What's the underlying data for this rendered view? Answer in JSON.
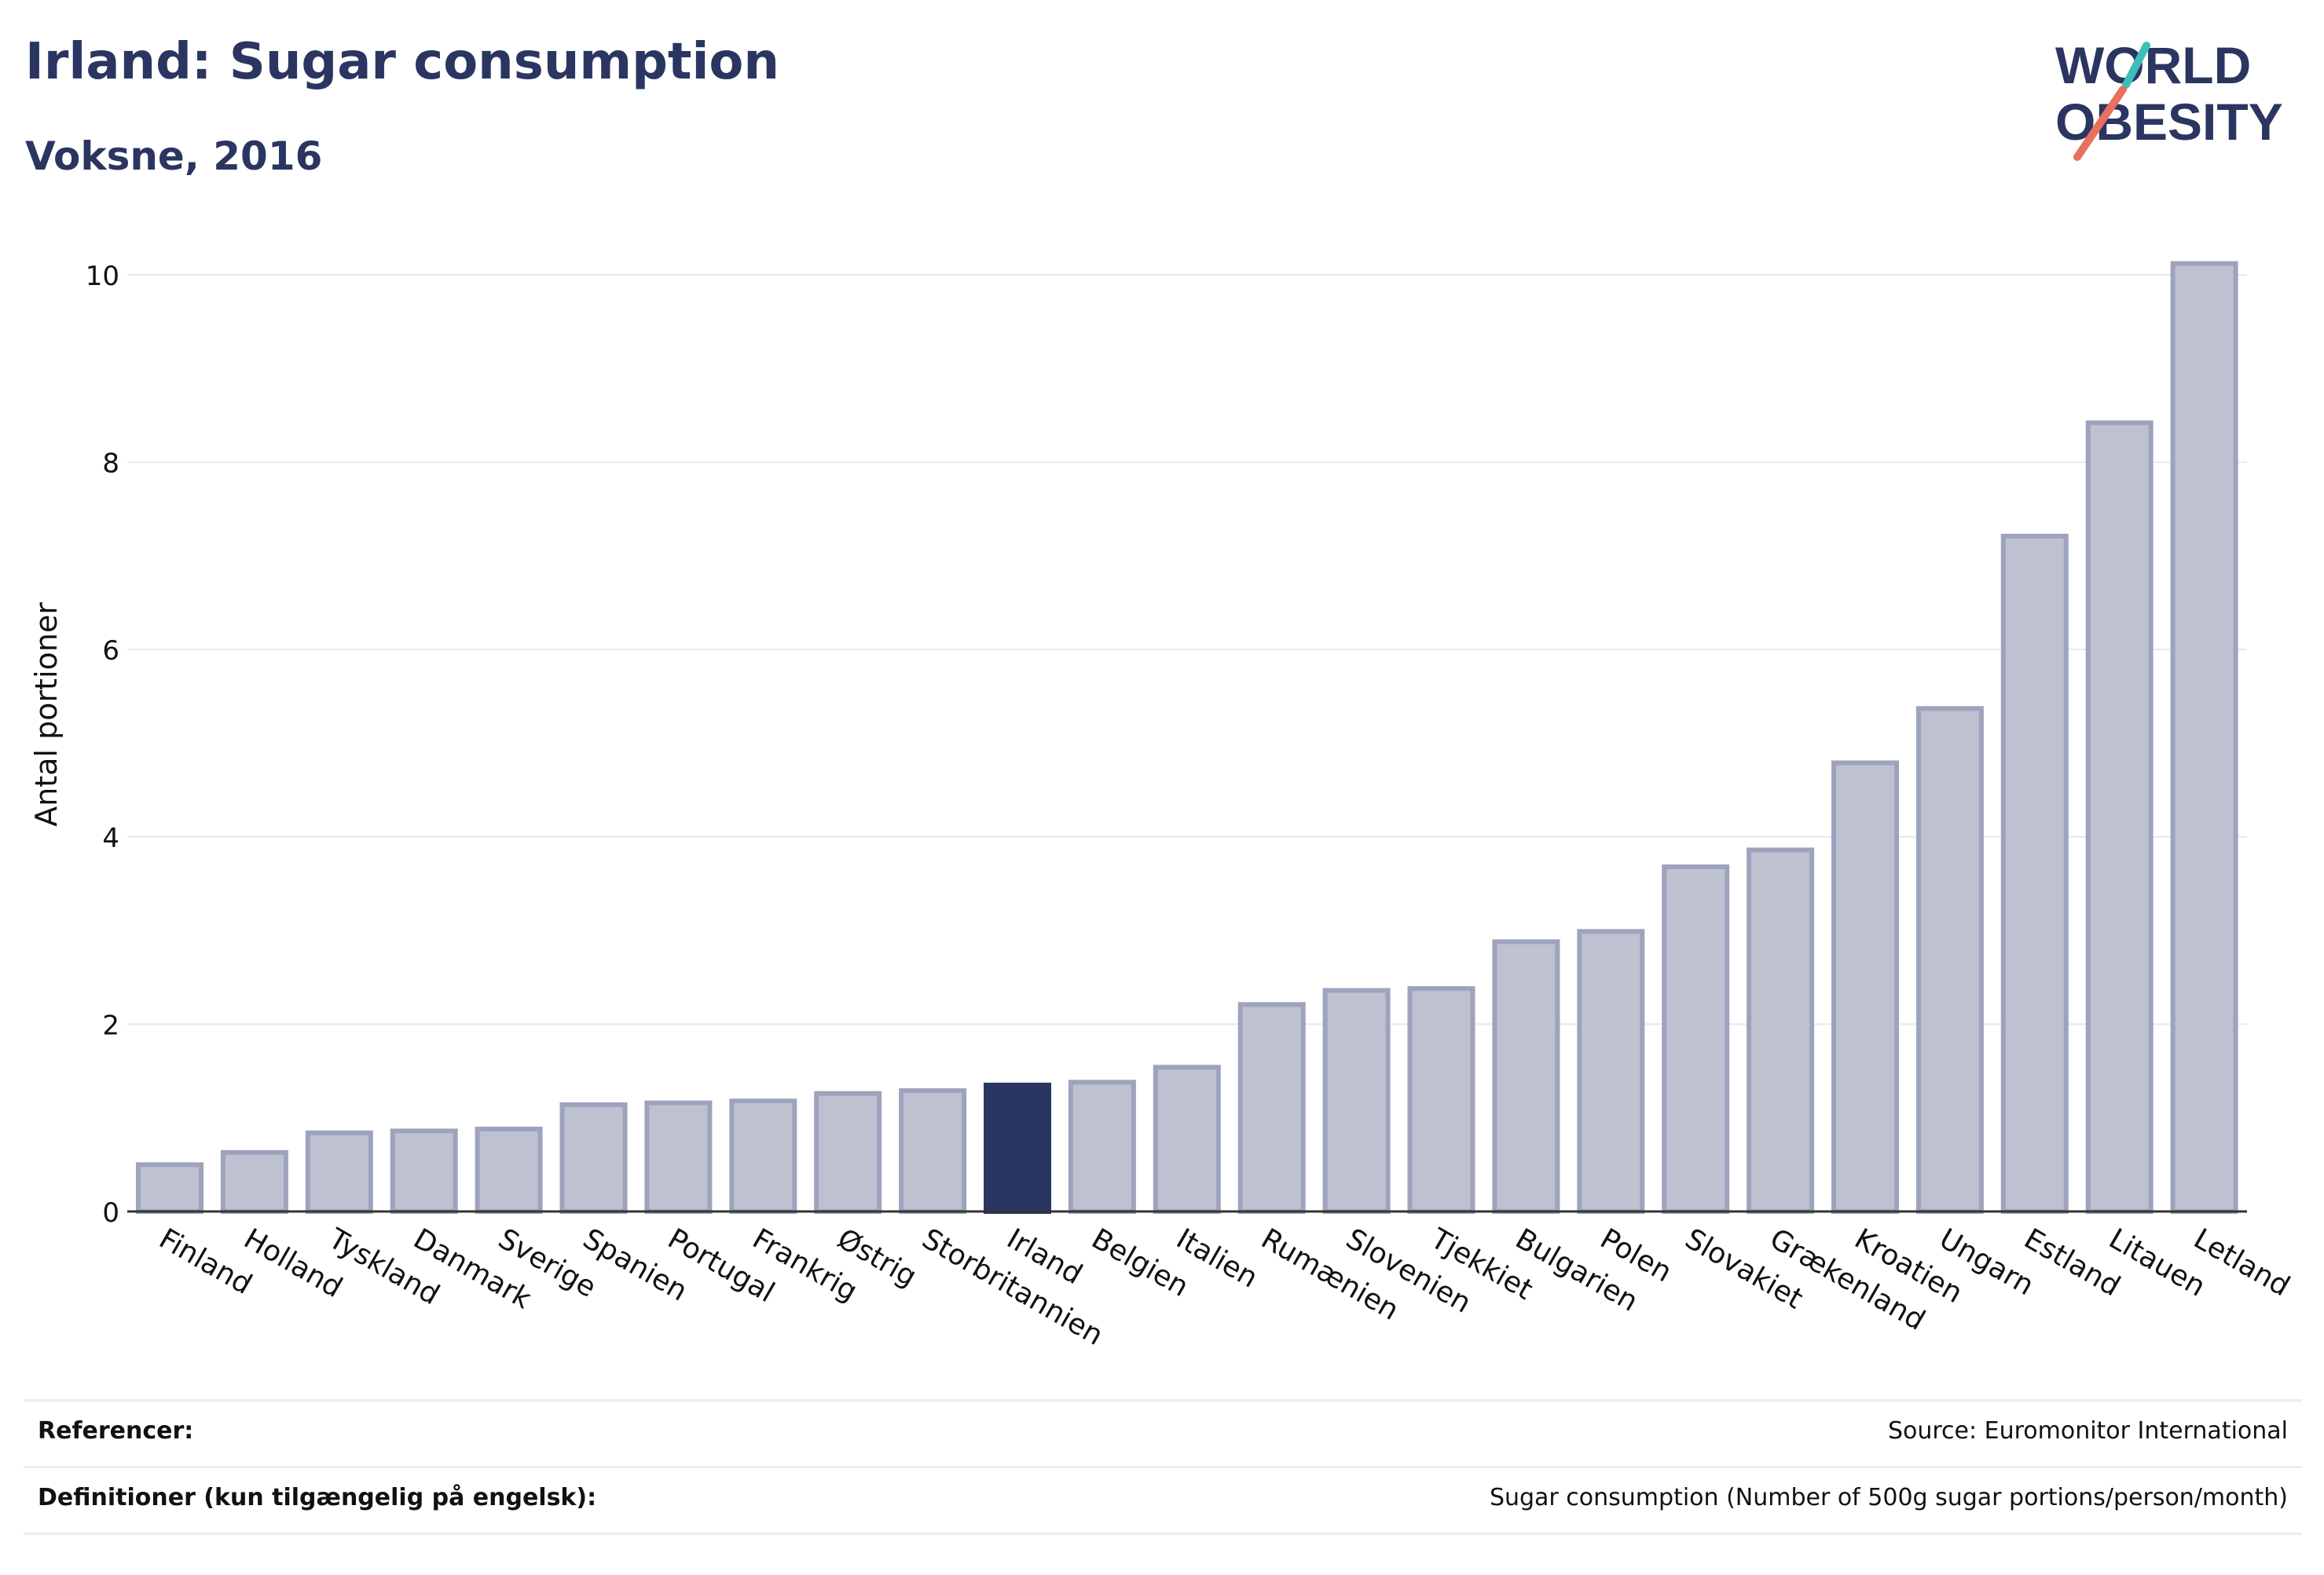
{
  "header": {
    "title": "Irland: Sugar consumption",
    "subtitle": "Voksne, 2016",
    "logo_line1": "WORLD",
    "logo_line2": "OBESITY"
  },
  "colors": {
    "highlight": "#2b3561",
    "bar_fill": "#bec1d0",
    "bar_stroke": "#9ea3bd",
    "grid": "#e6e7ee",
    "logo_teal": "#3dbdbd",
    "logo_coral": "#e8705f"
  },
  "chart_data": {
    "type": "bar",
    "ylabel": "Antal portioner",
    "xlabel": "",
    "ylim": [
      0,
      10.5
    ],
    "yticks": [
      0,
      2,
      4,
      6,
      8,
      10
    ],
    "grid": true,
    "highlight": "Irland",
    "categories": [
      "Finland",
      "Holland",
      "Tyskland",
      "Danmark",
      "Sverige",
      "Spanien",
      "Portugal",
      "Frankrig",
      "Østrig",
      "Storbritannien",
      "Irland",
      "Belgien",
      "Italien",
      "Rumænien",
      "Slovenien",
      "Tjekkiet",
      "Bulgarien",
      "Polen",
      "Slovakiet",
      "Grækenland",
      "Kroatien",
      "Ungarn",
      "Estland",
      "Litauen",
      "Letland"
    ],
    "values": [
      0.5,
      0.63,
      0.84,
      0.86,
      0.88,
      1.14,
      1.16,
      1.18,
      1.26,
      1.29,
      1.35,
      1.38,
      1.54,
      2.21,
      2.36,
      2.38,
      2.88,
      2.99,
      3.68,
      3.86,
      4.79,
      5.37,
      7.21,
      8.42,
      10.12
    ]
  },
  "footer": {
    "references_label": "Referencer:",
    "references_value": "Source: Euromonitor International",
    "definitions_label": "Definitioner (kun tilgængelig på engelsk):",
    "definitions_value": "Sugar consumption (Number of 500g sugar portions/person/month)"
  }
}
